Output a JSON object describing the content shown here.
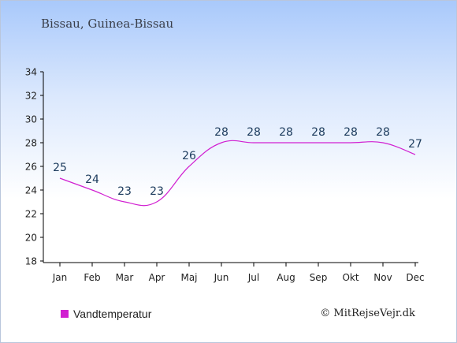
{
  "colors": {
    "series": "#d11fd1",
    "axis": "#000000",
    "label": "#1b3a5c"
  },
  "chart_data": {
    "type": "line",
    "subtitle": "Bissau, Guinea-Bissau",
    "categories": [
      "Jan",
      "Feb",
      "Mar",
      "Apr",
      "Maj",
      "Jun",
      "Jul",
      "Aug",
      "Sep",
      "Okt",
      "Nov",
      "Dec"
    ],
    "series": [
      {
        "name": "Vandtemperatur",
        "values": [
          25,
          24,
          23,
          23,
          26,
          28,
          28,
          28,
          28,
          28,
          28,
          27
        ]
      }
    ],
    "ylim": [
      18,
      34
    ],
    "yticks": [
      18,
      20,
      22,
      24,
      26,
      28,
      30,
      32,
      34
    ],
    "grid": false,
    "legend_position": "bottom-left",
    "credit": "© MitRejseVejr.dk"
  }
}
